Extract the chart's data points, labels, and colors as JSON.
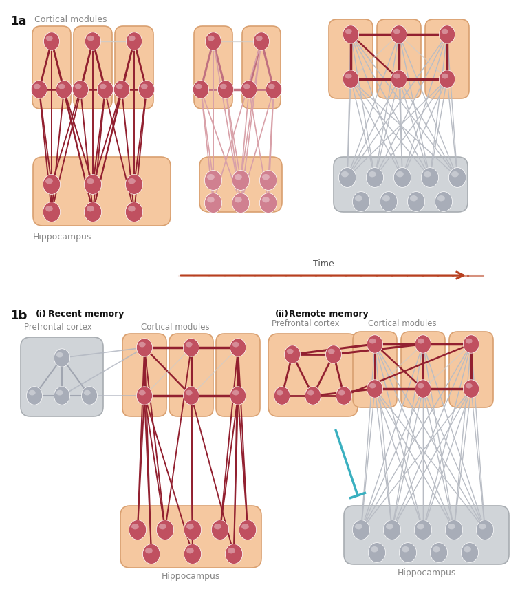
{
  "bg_color": "#ffffff",
  "orange_box_color": "#f5c8a0",
  "orange_box_edge": "#d9a070",
  "gray_box_color": "#d0d4d8",
  "gray_box_edge": "#a8adb2",
  "node_red": "#c05060",
  "node_red_light": "#d08090",
  "node_gray": "#a8adb8",
  "edge_dark_red": "#922030",
  "edge_med_red": "#c07080",
  "edge_light_red": "#d8a0a8",
  "edge_gray": "#b8bcc4",
  "teal": "#3ab0c0",
  "title_1a": "1a",
  "title_1b": "1b",
  "label_cortical": "Cortical modules",
  "label_hippocampus": "Hippocampus",
  "label_time": "Time",
  "label_recent": "Recent memory",
  "label_recent_i": "(i)",
  "label_remote": "Remote memory",
  "label_remote_ii": "(ii)",
  "label_prefrontal": "Prefrontal cortex",
  "label_cortical2": "Cortical modules"
}
